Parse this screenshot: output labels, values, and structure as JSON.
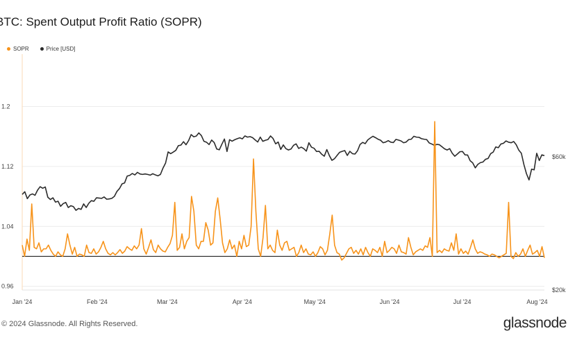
{
  "header": {
    "title": "BTC: Spent Output Profit Ratio (SOPR)"
  },
  "legend": {
    "items": [
      {
        "label": "SOPR",
        "color": "#f7931a"
      },
      {
        "label": "Price [USD]",
        "color": "#2b2b2b"
      }
    ]
  },
  "footer": {
    "copyright": "© 2024 Glassnode. All Rights Reserved.",
    "brand": "glassnode"
  },
  "chart_data": {
    "type": "line",
    "title": "BTC: Spent Output Profit Ratio (SOPR)",
    "x_ticks": [
      "Jan '24",
      "Feb '24",
      "Mar '24",
      "Apr '24",
      "May '24",
      "Jun '24",
      "Jul '24",
      "Aug '24"
    ],
    "x_range": [
      0,
      216
    ],
    "x_ticks_at": [
      0,
      31,
      60,
      91,
      121,
      152,
      182,
      213
    ],
    "y_left": {
      "ticks": [
        "0.96",
        "1.04",
        "1.12",
        "1.2"
      ],
      "tick_values": [
        0.96,
        1.04,
        1.12,
        1.2
      ],
      "range": [
        0.955,
        1.27
      ]
    },
    "y_right": {
      "ticks": [
        "$20k",
        "$60k"
      ],
      "tick_values": [
        20000,
        60000
      ],
      "log": true,
      "range": [
        20000,
        140000
      ]
    },
    "reference_line": 1.0,
    "grid": true,
    "legend_position": "top-left",
    "series": [
      {
        "name": "SOPR",
        "color": "#f7931a",
        "axis": "left",
        "values": [
          1.015,
          1.0,
          1.023,
          1.008,
          1.07,
          1.012,
          1.01,
          1.018,
          1.006,
          1.01,
          1.01,
          1.015,
          1.008,
          1.003,
          1.0,
          1.006,
          1.002,
          1.0,
          1.01,
          1.03,
          1.015,
          1.003,
          1.012,
          1.0,
          1.003,
          1.002,
          1.0,
          1.015,
          1.005,
          1.004,
          1.01,
          1.003,
          1.006,
          1.012,
          1.02,
          1.01,
          1.004,
          1.002,
          1.005,
          1.002,
          1.005,
          1.009,
          1.004,
          1.007,
          1.013,
          1.01,
          1.008,
          1.014,
          1.01,
          1.015,
          1.037,
          1.01,
          1.003,
          1.012,
          1.022,
          1.009,
          1.005,
          1.015,
          1.01,
          1.007,
          1.006,
          1.012,
          1.017,
          1.028,
          1.072,
          1.008,
          1.012,
          1.03,
          1.01,
          1.02,
          1.025,
          1.08,
          1.06,
          1.015,
          1.01,
          1.02,
          1.02,
          1.045,
          1.035,
          1.015,
          1.018,
          1.06,
          1.078,
          1.05,
          1.018,
          1.005,
          1.01,
          1.022,
          1.01,
          1.015,
          1.0,
          1.02,
          1.01,
          1.028,
          1.013,
          1.015,
          1.04,
          1.13,
          1.06,
          1.01,
          1.0,
          1.025,
          1.068,
          1.01,
          1.015,
          1.008,
          1.005,
          1.035,
          1.015,
          1.008,
          1.018,
          1.02,
          1.008,
          1.01,
          1.012,
          1.0,
          1.005,
          1.015,
          1.005,
          1.01,
          1.003,
          1.002,
          1.006,
          1.0,
          1.005,
          1.013,
          1.01,
          1.002,
          1.008,
          1.03,
          1.055,
          1.015,
          1.005,
          1.003,
          0.995,
          0.998,
          1.004,
          1.01,
          1.012,
          1.004,
          1.008,
          1.003,
          1.01,
          1.002,
          1.012,
          1.005,
          1.0,
          1.01,
          1.008,
          1.005,
          1.012,
          1.0,
          1.02,
          1.005,
          1.008,
          1.012,
          1.01,
          1.004,
          1.015,
          1.006,
          1.005,
          1.003,
          1.025,
          1.012,
          1.002,
          1.006,
          1.008,
          1.01,
          1.008,
          1.014,
          1.012,
          1.025,
          1.0,
          1.18,
          1.005,
          1.008,
          1.005,
          1.01,
          1.008,
          1.007,
          1.018,
          1.008,
          1.03,
          1.003,
          1.01,
          1.004,
          1.007,
          1.003,
          1.012,
          1.022,
          1.01,
          1.004,
          1.006,
          1.005,
          1.003,
          1.002,
          1.0,
          1.003,
          1.002,
          1.0,
          0.998,
          1.0,
          1.002,
          1.004,
          1.072,
          1.0,
          0.997,
          1.005,
          1.0,
          1.003,
          1.01,
          1.0,
          1.008,
          1.015,
          1.003,
          1.005,
          1.008,
          1.0,
          1.013,
          0.998
        ],
        "_comment": ""
      },
      {
        "name": "Price [USD]",
        "color": "#2b2b2b",
        "axis": "right",
        "values": [
          44000,
          45000,
          42500,
          43800,
          44200,
          43700,
          45600,
          46900,
          46300,
          46800,
          43000,
          42200,
          42800,
          41300,
          41600,
          39900,
          40800,
          41200,
          39500,
          40100,
          39800,
          38600,
          39200,
          38900,
          40700,
          39500,
          40900,
          41800,
          41600,
          42800,
          42700,
          42600,
          43100,
          42300,
          42400,
          42600,
          43300,
          45100,
          46200,
          48000,
          48400,
          51200,
          51500,
          52300,
          51700,
          52800,
          52100,
          51900,
          52100,
          51900,
          51600,
          52200,
          51700,
          51300,
          51900,
          54700,
          57000,
          62500,
          61600,
          62400,
          63300,
          65800,
          66100,
          68000,
          66300,
          68600,
          72100,
          70800,
          71200,
          73100,
          71500,
          68200,
          67700,
          66400,
          68900,
          67500,
          64000,
          63600,
          66600,
          69500,
          62700,
          69100,
          68300,
          69100,
          69700,
          70200,
          69600,
          71300,
          70600,
          70900,
          70300,
          69000,
          67800,
          70600,
          68200,
          68800,
          69200,
          71300,
          69800,
          66800,
          67800,
          63800,
          66200,
          64200,
          63500,
          64000,
          66000,
          66800,
          64300,
          65000,
          64200,
          62900,
          67400,
          65000,
          64400,
          62700,
          62800,
          61300,
          60300,
          63700,
          60600,
          58300,
          59100,
          60700,
          62300,
          62800,
          63200,
          60700,
          62800,
          61600,
          61400,
          63100,
          66500,
          67600,
          66900,
          69000,
          70100,
          71100,
          70300,
          69400,
          68800,
          67400,
          67800,
          68600,
          67700,
          67500,
          69300,
          68900,
          68400,
          67400,
          67800,
          69200,
          69400,
          71100,
          70600,
          70500,
          69700,
          69400,
          69200,
          67300,
          66700,
          66000,
          66500,
          66300,
          65200,
          64100,
          63500,
          64200,
          61800,
          60300,
          61400,
          62600,
          62700,
          61000,
          60900,
          58100,
          57100,
          54800,
          56400,
          57200,
          57500,
          58800,
          59200,
          61600,
          62400,
          65100,
          64700,
          66700,
          67100,
          68400,
          67700,
          67400,
          68100,
          66300,
          63400,
          61800,
          56300,
          52200,
          49600,
          54200,
          53900,
          61800,
          58200,
          61000,
          60600
        ]
      }
    ]
  }
}
